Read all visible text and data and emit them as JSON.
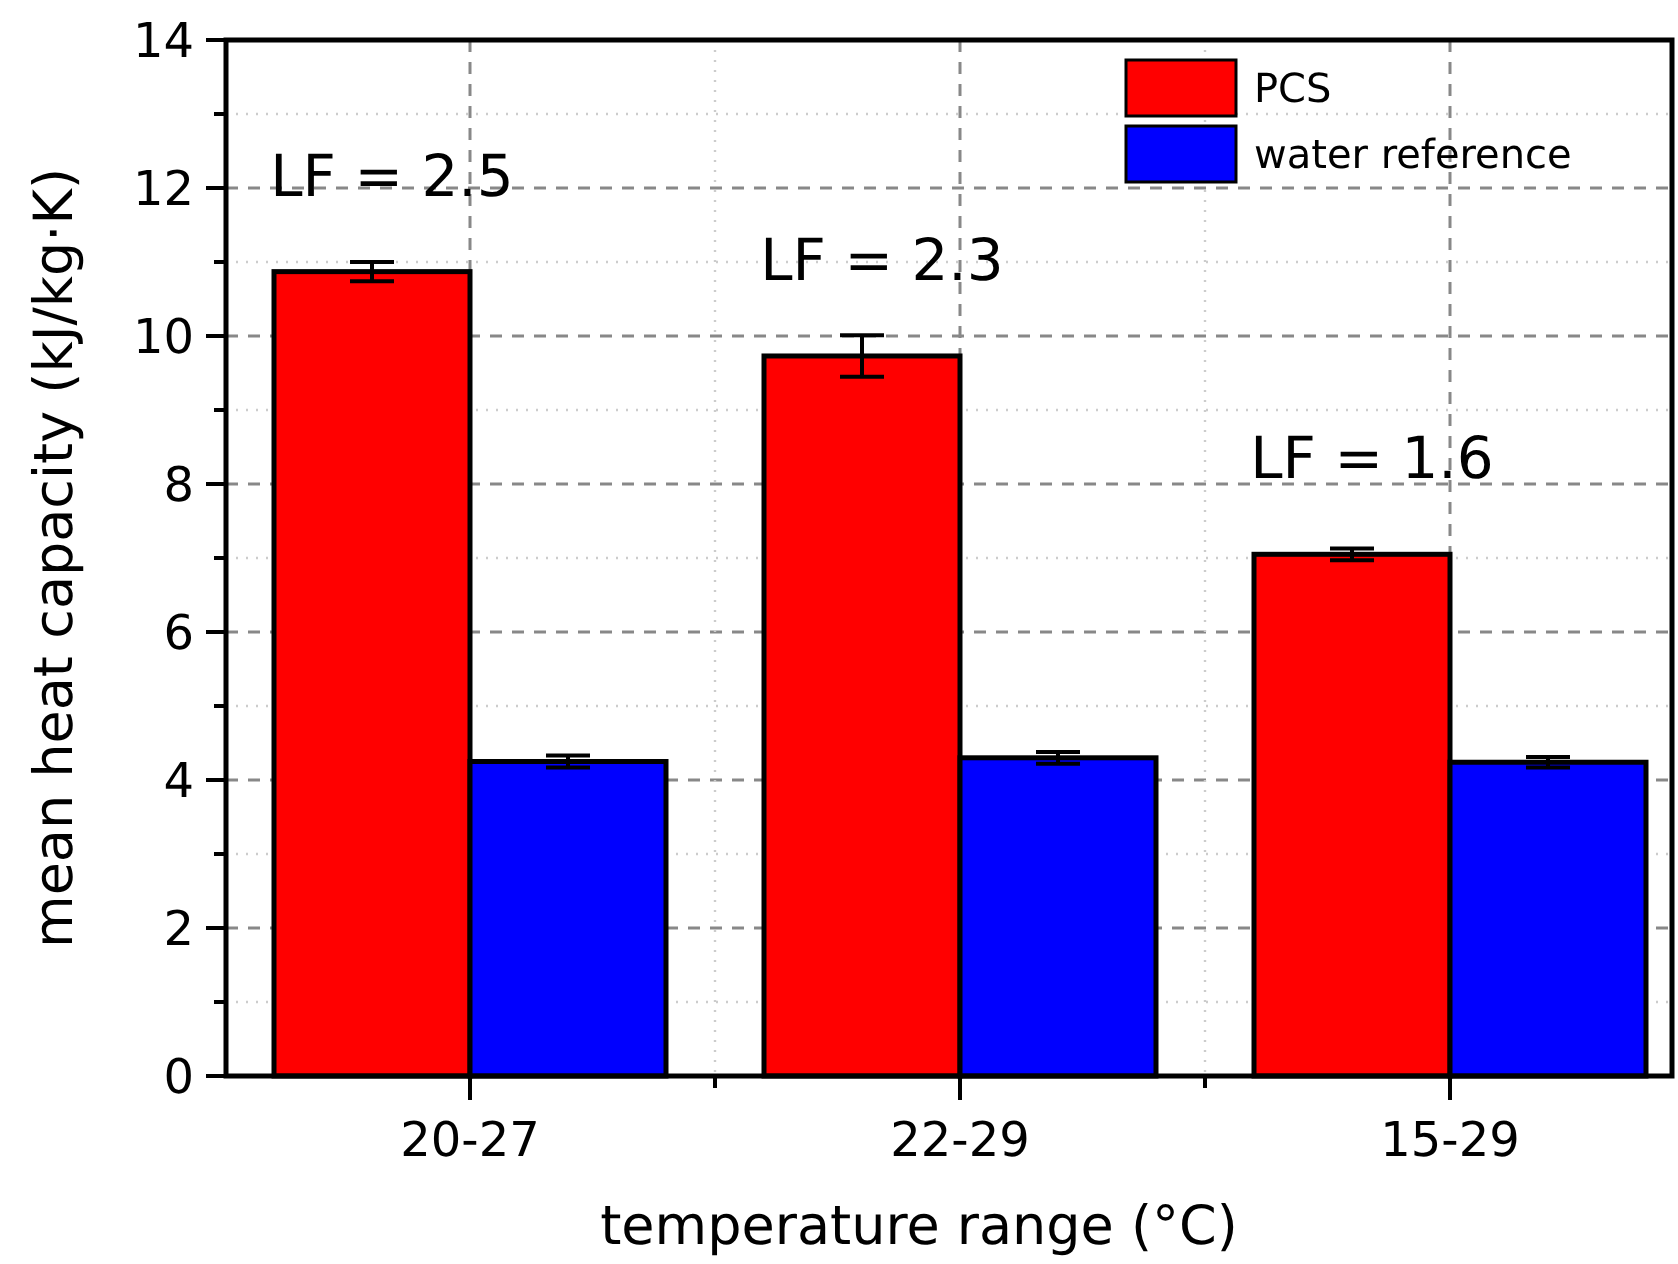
{
  "chart_data": {
    "type": "bar",
    "xlabel": "temperature range (°C)",
    "ylabel": "mean heat capacity (kJ/kg·K)",
    "categories": [
      "20-27",
      "22-29",
      "15-29"
    ],
    "series": [
      {
        "name": "PCS",
        "color": "#ff0000",
        "values": [
          10.87,
          9.73,
          7.05
        ],
        "errors": [
          0.13,
          0.28,
          0.08
        ]
      },
      {
        "name": "water reference",
        "color": "#0000ff",
        "values": [
          4.25,
          4.3,
          4.24
        ],
        "errors": [
          0.08,
          0.08,
          0.07
        ]
      }
    ],
    "ylim": [
      0,
      14
    ],
    "yticks": [
      0,
      {
        "value": 1,
        "label": null
      },
      2,
      {
        "value": 3,
        "label": null
      },
      4,
      {
        "value": 5,
        "label": null
      },
      6,
      {
        "value": 7,
        "label": null
      },
      8,
      {
        "value": 9,
        "label": null
      },
      10,
      {
        "value": 11,
        "label": null
      },
      12,
      {
        "value": 13,
        "label": null
      },
      14
    ],
    "grid": true,
    "legend": "top right",
    "annotations": [
      "LF = 2.5",
      "LF = 2.3",
      "LF = 1.6"
    ]
  }
}
